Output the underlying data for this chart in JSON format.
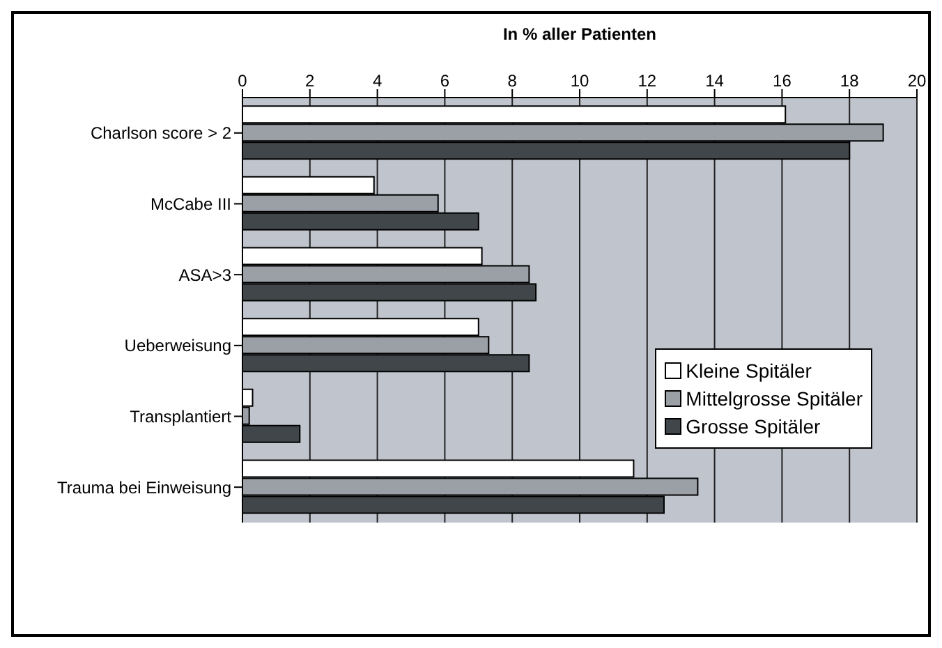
{
  "chart_data": {
    "type": "bar",
    "orientation": "horizontal",
    "xlabel": "In % aller Patienten",
    "categories": [
      "Charlson score > 2",
      "McCabe III",
      "ASA>3",
      "Ueberweisung",
      "Transplantiert",
      "Trauma bei Einweisung"
    ],
    "series": [
      {
        "name": "Kleine Spitäler",
        "color": "#ffffff",
        "values": [
          16.1,
          3.9,
          7.1,
          7.0,
          0.3,
          11.6
        ]
      },
      {
        "name": "Mittelgrosse Spitäler",
        "color": "#9aa0a6",
        "values": [
          19.0,
          5.8,
          8.5,
          7.3,
          0.2,
          13.5
        ]
      },
      {
        "name": "Grosse Spitäler",
        "color": "#41464a",
        "values": [
          18.0,
          7.0,
          8.7,
          8.5,
          1.7,
          12.5
        ]
      }
    ],
    "xlim": [
      0,
      20
    ],
    "xticks": [
      0,
      2,
      4,
      6,
      8,
      10,
      12,
      14,
      16,
      18,
      20
    ],
    "grid": "x",
    "legend": "right"
  }
}
